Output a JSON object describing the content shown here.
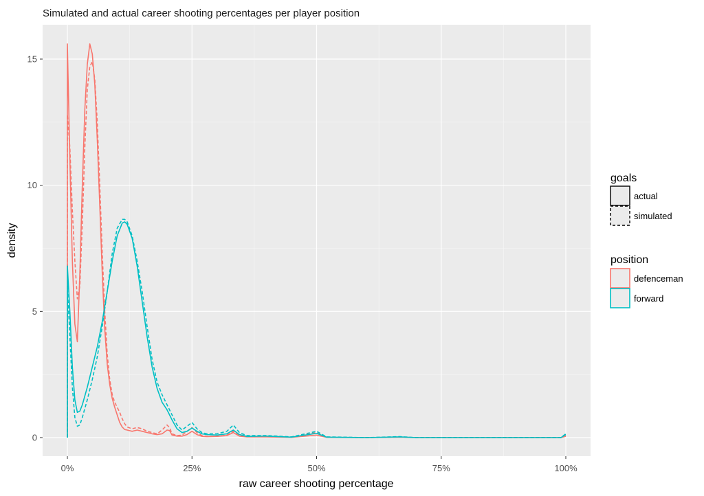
{
  "chart_data": {
    "type": "line",
    "title": "Simulated and actual career shooting percentages per player position",
    "xlabel": "raw career shooting percentage",
    "ylabel": "density",
    "xlim": [
      0,
      100
    ],
    "ylim": [
      0,
      16
    ],
    "x_ticks": [
      0,
      25,
      50,
      75,
      100
    ],
    "x_tick_labels": [
      "0%",
      "25%",
      "50%",
      "75%",
      "100%"
    ],
    "y_ticks": [
      0,
      5,
      10,
      15
    ],
    "y_tick_labels": [
      "0",
      "5",
      "10",
      "15"
    ],
    "grid": true,
    "legend_placement": "right",
    "legend": {
      "goals": {
        "title": "goals",
        "items": [
          {
            "label": "actual",
            "linetype": "solid"
          },
          {
            "label": "simulated",
            "linetype": "dashed"
          }
        ]
      },
      "position": {
        "title": "position",
        "items": [
          {
            "label": "defenceman",
            "color": "#F8766D"
          },
          {
            "label": "forward",
            "color": "#00BFC4"
          }
        ]
      }
    },
    "series": [
      {
        "position": "defenceman",
        "goals": "actual",
        "color": "#F8766D",
        "linetype": "solid",
        "points": [
          [
            0,
            0
          ],
          [
            0,
            15.6
          ],
          [
            0.5,
            11.0
          ],
          [
            1,
            7.0
          ],
          [
            1.5,
            4.5
          ],
          [
            2,
            3.8
          ],
          [
            2.5,
            6.5
          ],
          [
            3,
            10.0
          ],
          [
            3.5,
            13.0
          ],
          [
            4,
            14.8
          ],
          [
            4.5,
            15.6
          ],
          [
            5,
            15.2
          ],
          [
            5.5,
            14.0
          ],
          [
            6,
            11.8
          ],
          [
            6.5,
            9.2
          ],
          [
            7,
            6.5
          ],
          [
            7.5,
            4.3
          ],
          [
            8,
            2.9
          ],
          [
            8.5,
            2.1
          ],
          [
            9,
            1.55
          ],
          [
            9.5,
            1.2
          ],
          [
            10,
            0.9
          ],
          [
            10.5,
            0.6
          ],
          [
            11,
            0.42
          ],
          [
            11.5,
            0.32
          ],
          [
            12,
            0.3
          ],
          [
            13,
            0.25
          ],
          [
            14,
            0.3
          ],
          [
            15,
            0.25
          ],
          [
            16,
            0.2
          ],
          [
            17,
            0.15
          ],
          [
            18,
            0.12
          ],
          [
            19,
            0.15
          ],
          [
            20,
            0.3
          ],
          [
            20.5,
            0.28
          ],
          [
            21,
            0.1
          ],
          [
            22,
            0.06
          ],
          [
            23,
            0.06
          ],
          [
            24,
            0.12
          ],
          [
            25,
            0.25
          ],
          [
            26,
            0.12
          ],
          [
            27,
            0.05
          ],
          [
            28,
            0.04
          ],
          [
            30,
            0.05
          ],
          [
            32,
            0.08
          ],
          [
            33.3,
            0.2
          ],
          [
            34.5,
            0.06
          ],
          [
            36,
            0.03
          ],
          [
            40,
            0.03
          ],
          [
            45,
            0.01
          ],
          [
            50,
            0.1
          ],
          [
            52,
            0.01
          ],
          [
            60,
            0.0
          ],
          [
            66.7,
            0.02
          ],
          [
            70,
            0.0
          ],
          [
            99,
            0.0
          ],
          [
            100,
            0.05
          ]
        ]
      },
      {
        "position": "defenceman",
        "goals": "simulated",
        "color": "#F8766D",
        "linetype": "dashed",
        "points": [
          [
            0,
            0
          ],
          [
            0,
            12.8
          ],
          [
            0.5,
            11.5
          ],
          [
            1,
            9.0
          ],
          [
            1.5,
            7.0
          ],
          [
            2,
            5.5
          ],
          [
            2.5,
            6.0
          ],
          [
            3,
            8.5
          ],
          [
            3.5,
            11.5
          ],
          [
            4,
            13.8
          ],
          [
            4.5,
            14.7
          ],
          [
            5,
            14.9
          ],
          [
            5.5,
            14.2
          ],
          [
            6,
            12.5
          ],
          [
            6.5,
            10.0
          ],
          [
            7,
            7.3
          ],
          [
            7.5,
            5.0
          ],
          [
            8,
            3.3
          ],
          [
            8.5,
            2.3
          ],
          [
            9,
            1.7
          ],
          [
            9.5,
            1.4
          ],
          [
            10,
            1.2
          ],
          [
            10.5,
            1.0
          ],
          [
            11,
            0.75
          ],
          [
            11.5,
            0.55
          ],
          [
            12,
            0.42
          ],
          [
            13,
            0.35
          ],
          [
            14,
            0.4
          ],
          [
            15,
            0.35
          ],
          [
            16,
            0.25
          ],
          [
            17,
            0.2
          ],
          [
            18,
            0.15
          ],
          [
            19,
            0.3
          ],
          [
            20,
            0.5
          ],
          [
            20.5,
            0.4
          ],
          [
            21,
            0.15
          ],
          [
            22,
            0.08
          ],
          [
            23,
            0.1
          ],
          [
            24,
            0.25
          ],
          [
            25,
            0.4
          ],
          [
            26,
            0.2
          ],
          [
            27,
            0.08
          ],
          [
            28,
            0.05
          ],
          [
            30,
            0.05
          ],
          [
            32,
            0.1
          ],
          [
            33.3,
            0.25
          ],
          [
            34.5,
            0.08
          ],
          [
            36,
            0.05
          ],
          [
            40,
            0.05
          ],
          [
            45,
            0.02
          ],
          [
            50,
            0.2
          ],
          [
            52,
            0.02
          ],
          [
            60,
            0.0
          ],
          [
            66.7,
            0.02
          ],
          [
            70,
            0.0
          ],
          [
            99,
            0.0
          ],
          [
            100,
            0.07
          ]
        ]
      },
      {
        "position": "forward",
        "goals": "actual",
        "color": "#00BFC4",
        "linetype": "solid",
        "points": [
          [
            0,
            0
          ],
          [
            0,
            6.8
          ],
          [
            0.5,
            5.0
          ],
          [
            1,
            2.8
          ],
          [
            1.5,
            1.5
          ],
          [
            2,
            1.0
          ],
          [
            2.5,
            1.05
          ],
          [
            3,
            1.3
          ],
          [
            4,
            2.0
          ],
          [
            5,
            2.8
          ],
          [
            6,
            3.6
          ],
          [
            7,
            4.6
          ],
          [
            8,
            5.8
          ],
          [
            9,
            7.0
          ],
          [
            10,
            8.0
          ],
          [
            11,
            8.5
          ],
          [
            11.5,
            8.55
          ],
          [
            12,
            8.45
          ],
          [
            13,
            7.9
          ],
          [
            14,
            6.8
          ],
          [
            15,
            5.4
          ],
          [
            16,
            4.0
          ],
          [
            17,
            2.8
          ],
          [
            18,
            1.95
          ],
          [
            19,
            1.4
          ],
          [
            20,
            1.1
          ],
          [
            21,
            0.7
          ],
          [
            22,
            0.35
          ],
          [
            23,
            0.2
          ],
          [
            24,
            0.25
          ],
          [
            25,
            0.38
          ],
          [
            26,
            0.25
          ],
          [
            27,
            0.15
          ],
          [
            28,
            0.12
          ],
          [
            30,
            0.1
          ],
          [
            32,
            0.15
          ],
          [
            33.3,
            0.3
          ],
          [
            34.5,
            0.12
          ],
          [
            36,
            0.05
          ],
          [
            40,
            0.06
          ],
          [
            45,
            0.02
          ],
          [
            50,
            0.17
          ],
          [
            52,
            0.02
          ],
          [
            60,
            0.0
          ],
          [
            66.7,
            0.03
          ],
          [
            70,
            0.0
          ],
          [
            99,
            0.0
          ],
          [
            100,
            0.12
          ]
        ]
      },
      {
        "position": "forward",
        "goals": "simulated",
        "color": "#00BFC4",
        "linetype": "dashed",
        "points": [
          [
            0,
            0
          ],
          [
            0,
            6.0
          ],
          [
            0.5,
            4.0
          ],
          [
            1,
            2.0
          ],
          [
            1.5,
            0.8
          ],
          [
            2,
            0.45
          ],
          [
            2.5,
            0.5
          ],
          [
            3,
            0.8
          ],
          [
            4,
            1.5
          ],
          [
            5,
            2.3
          ],
          [
            6,
            3.2
          ],
          [
            7,
            4.4
          ],
          [
            8,
            5.8
          ],
          [
            9,
            7.3
          ],
          [
            10,
            8.3
          ],
          [
            11,
            8.65
          ],
          [
            11.5,
            8.65
          ],
          [
            12,
            8.55
          ],
          [
            13,
            8.0
          ],
          [
            14,
            7.0
          ],
          [
            15,
            5.8
          ],
          [
            16,
            4.4
          ],
          [
            17,
            3.1
          ],
          [
            18,
            2.2
          ],
          [
            19,
            1.7
          ],
          [
            20,
            1.3
          ],
          [
            21,
            0.9
          ],
          [
            22,
            0.5
          ],
          [
            23,
            0.3
          ],
          [
            24,
            0.45
          ],
          [
            25,
            0.6
          ],
          [
            26,
            0.35
          ],
          [
            27,
            0.2
          ],
          [
            28,
            0.15
          ],
          [
            30,
            0.15
          ],
          [
            32,
            0.25
          ],
          [
            33.3,
            0.5
          ],
          [
            34.5,
            0.2
          ],
          [
            36,
            0.08
          ],
          [
            40,
            0.08
          ],
          [
            45,
            0.03
          ],
          [
            50,
            0.25
          ],
          [
            52,
            0.03
          ],
          [
            60,
            0.0
          ],
          [
            66.7,
            0.04
          ],
          [
            70,
            0.0
          ],
          [
            99,
            0.0
          ],
          [
            100,
            0.15
          ]
        ]
      }
    ]
  }
}
